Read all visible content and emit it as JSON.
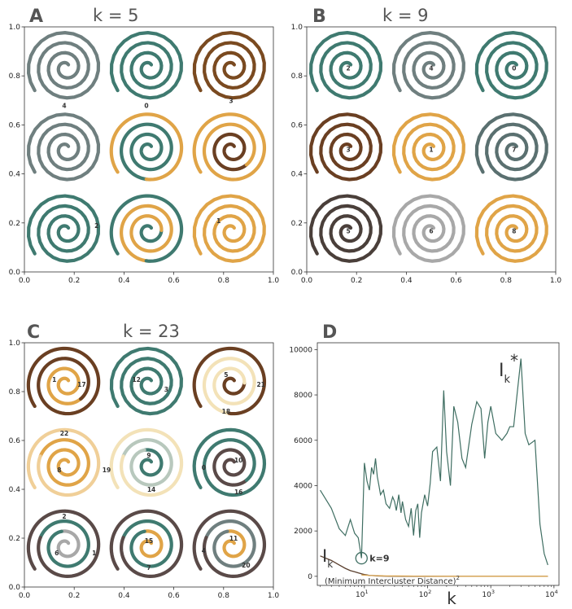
{
  "chart_data": [
    {
      "id": "A",
      "type": "scatter",
      "panel_letter": "A",
      "title": "k = 5",
      "xlim": [
        0.0,
        1.0
      ],
      "ylim": [
        0.0,
        1.0
      ],
      "x_ticks": [
        "0.0",
        "0.2",
        "0.4",
        "0.6",
        "0.8",
        "1.0"
      ],
      "y_ticks": [
        "0.0",
        "0.2",
        "0.4",
        "0.6",
        "0.8",
        "1.0"
      ],
      "spirals": [
        {
          "cx": 0.167,
          "cy": 0.833,
          "colors": [
            "#6f7f7f"
          ]
        },
        {
          "cx": 0.5,
          "cy": 0.833,
          "colors": [
            "#3f7a70"
          ]
        },
        {
          "cx": 0.833,
          "cy": 0.833,
          "colors": [
            "#7a4a20"
          ]
        },
        {
          "cx": 0.167,
          "cy": 0.5,
          "colors": [
            "#6f7f7f"
          ]
        },
        {
          "cx": 0.5,
          "cy": 0.5,
          "colors": [
            "#3f7a70",
            "#3f7a70",
            "#3f7a70",
            "#e0a447"
          ]
        },
        {
          "cx": 0.833,
          "cy": 0.5,
          "colors": [
            "#6a3f22",
            "#6a3f22",
            "#e0a447",
            "#e0a447"
          ]
        },
        {
          "cx": 0.167,
          "cy": 0.167,
          "colors": [
            "#3f7a70"
          ]
        },
        {
          "cx": 0.5,
          "cy": 0.167,
          "colors": [
            "#3f7a70",
            "#e0a447",
            "#e0a447",
            "#3f7a70"
          ]
        },
        {
          "cx": 0.833,
          "cy": 0.167,
          "colors": [
            "#e0a447"
          ]
        }
      ],
      "cluster_labels": [
        {
          "text": "4",
          "x": 0.16,
          "y": 0.68
        },
        {
          "text": "0",
          "x": 0.49,
          "y": 0.68
        },
        {
          "text": "3",
          "x": 0.83,
          "y": 0.7
        },
        {
          "text": "2",
          "x": 0.29,
          "y": 0.19
        },
        {
          "text": "1",
          "x": 0.78,
          "y": 0.21
        }
      ]
    },
    {
      "id": "B",
      "type": "scatter",
      "panel_letter": "B",
      "title": "k = 9",
      "xlim": [
        0.0,
        1.0
      ],
      "ylim": [
        0.0,
        1.0
      ],
      "x_ticks": [
        "0.0",
        "0.2",
        "0.4",
        "0.6",
        "0.8",
        "1.0"
      ],
      "y_ticks": [
        "0.0",
        "0.2",
        "0.4",
        "0.6",
        "0.8",
        "1.0"
      ],
      "spirals": [
        {
          "cx": 0.167,
          "cy": 0.833,
          "colors": [
            "#3f7a70"
          ]
        },
        {
          "cx": 0.5,
          "cy": 0.833,
          "colors": [
            "#6f7f7f"
          ]
        },
        {
          "cx": 0.833,
          "cy": 0.833,
          "colors": [
            "#3f7a70"
          ]
        },
        {
          "cx": 0.167,
          "cy": 0.5,
          "colors": [
            "#6a3f22"
          ]
        },
        {
          "cx": 0.5,
          "cy": 0.5,
          "colors": [
            "#e0a447"
          ]
        },
        {
          "cx": 0.833,
          "cy": 0.5,
          "colors": [
            "#5a7070"
          ]
        },
        {
          "cx": 0.167,
          "cy": 0.167,
          "colors": [
            "#4a3f3a"
          ]
        },
        {
          "cx": 0.5,
          "cy": 0.167,
          "colors": [
            "#a8a8a8"
          ]
        },
        {
          "cx": 0.833,
          "cy": 0.167,
          "colors": [
            "#e0a447"
          ]
        }
      ],
      "cluster_labels": [
        {
          "text": "2",
          "x": 0.167,
          "y": 0.833
        },
        {
          "text": "4",
          "x": 0.5,
          "y": 0.833
        },
        {
          "text": "0",
          "x": 0.833,
          "y": 0.833
        },
        {
          "text": "3",
          "x": 0.167,
          "y": 0.5
        },
        {
          "text": "1",
          "x": 0.5,
          "y": 0.5
        },
        {
          "text": "7",
          "x": 0.833,
          "y": 0.5
        },
        {
          "text": "5",
          "x": 0.167,
          "y": 0.167
        },
        {
          "text": "6",
          "x": 0.5,
          "y": 0.167
        },
        {
          "text": "8",
          "x": 0.833,
          "y": 0.167
        }
      ]
    },
    {
      "id": "C",
      "type": "scatter",
      "panel_letter": "C",
      "title": "k = 23",
      "xlim": [
        0.0,
        1.0
      ],
      "ylim": [
        0.0,
        1.0
      ],
      "x_ticks": [
        "0.0",
        "0.2",
        "0.4",
        "0.6",
        "0.8",
        "1.0"
      ],
      "y_ticks": [
        "0.0",
        "0.2",
        "0.4",
        "0.6",
        "0.8",
        "1.0"
      ],
      "spirals": [
        {
          "cx": 0.167,
          "cy": 0.833,
          "colors": [
            "#e0a447",
            "#e0a447",
            "#6a3f22",
            "#6a3f22"
          ]
        },
        {
          "cx": 0.5,
          "cy": 0.833,
          "colors": [
            "#3f7a70"
          ]
        },
        {
          "cx": 0.833,
          "cy": 0.833,
          "colors": [
            "#6a3f22",
            "#f3e2b8",
            "#f3e2b8",
            "#6a3f22"
          ]
        },
        {
          "cx": 0.167,
          "cy": 0.5,
          "colors": [
            "#e0a447",
            "#e0a447",
            "#f0cf98"
          ]
        },
        {
          "cx": 0.5,
          "cy": 0.5,
          "colors": [
            "#3f7a70",
            "#b8c8bd",
            "#f3e2b8"
          ]
        },
        {
          "cx": 0.833,
          "cy": 0.5,
          "colors": [
            "#5a4a48",
            "#3f7a70"
          ]
        },
        {
          "cx": 0.167,
          "cy": 0.167,
          "colors": [
            "#a8a8a8",
            "#3f7a70",
            "#5a4a48"
          ]
        },
        {
          "cx": 0.5,
          "cy": 0.167,
          "colors": [
            "#e0a447",
            "#3f7a70",
            "#5a4a48"
          ]
        },
        {
          "cx": 0.833,
          "cy": 0.167,
          "colors": [
            "#e0a447",
            "#6f7f7f",
            "#5a4a48"
          ]
        }
      ],
      "cluster_labels": [
        {
          "text": "1",
          "x": 0.12,
          "y": 0.85
        },
        {
          "text": "17",
          "x": 0.23,
          "y": 0.83
        },
        {
          "text": "12",
          "x": 0.45,
          "y": 0.85
        },
        {
          "text": "3",
          "x": 0.57,
          "y": 0.81
        },
        {
          "text": "5",
          "x": 0.81,
          "y": 0.87
        },
        {
          "text": "21",
          "x": 0.95,
          "y": 0.83
        },
        {
          "text": "18",
          "x": 0.81,
          "y": 0.72
        },
        {
          "text": "22",
          "x": 0.16,
          "y": 0.63
        },
        {
          "text": "8",
          "x": 0.14,
          "y": 0.48
        },
        {
          "text": "19",
          "x": 0.33,
          "y": 0.48
        },
        {
          "text": "9",
          "x": 0.5,
          "y": 0.54
        },
        {
          "text": "14",
          "x": 0.51,
          "y": 0.4
        },
        {
          "text": "0",
          "x": 0.72,
          "y": 0.49
        },
        {
          "text": "10",
          "x": 0.86,
          "y": 0.52
        },
        {
          "text": "16",
          "x": 0.86,
          "y": 0.39
        },
        {
          "text": "2",
          "x": 0.16,
          "y": 0.29
        },
        {
          "text": "6",
          "x": 0.13,
          "y": 0.14
        },
        {
          "text": "1",
          "x": 0.28,
          "y": 0.14
        },
        {
          "text": "15",
          "x": 0.5,
          "y": 0.19
        },
        {
          "text": "7",
          "x": 0.5,
          "y": 0.08
        },
        {
          "text": "4",
          "x": 0.72,
          "y": 0.15
        },
        {
          "text": "11",
          "x": 0.84,
          "y": 0.2
        },
        {
          "text": "20",
          "x": 0.89,
          "y": 0.09
        }
      ]
    },
    {
      "id": "D",
      "type": "line",
      "panel_letter": "D",
      "xscale": "log",
      "xlim": [
        1.8,
        12000
      ],
      "ylim": [
        -400,
        10300
      ],
      "x_ticks": [
        {
          "value": 10,
          "base": "10",
          "exp": "1"
        },
        {
          "value": 100,
          "base": "10",
          "exp": "2"
        },
        {
          "value": 1000,
          "base": "10",
          "exp": "3"
        },
        {
          "value": 10000,
          "base": "10",
          "exp": "4"
        }
      ],
      "y_ticks": [
        {
          "value": 0,
          "label": "0"
        },
        {
          "value": 2000,
          "label": "2000"
        },
        {
          "value": 4000,
          "label": "4000"
        },
        {
          "value": 6000,
          "label": "6000"
        },
        {
          "value": 8000,
          "label": "8000"
        },
        {
          "value": 10000,
          "label": "10000"
        }
      ],
      "xlabel": "k",
      "series": [
        {
          "name": "I_k*",
          "color": "#3f6e62",
          "x": [
            2,
            3,
            4,
            5,
            6,
            7,
            8,
            9,
            10,
            11,
            12,
            13,
            14,
            15,
            16,
            17,
            18,
            20,
            22,
            25,
            28,
            30,
            32,
            35,
            38,
            40,
            45,
            50,
            55,
            60,
            65,
            70,
            75,
            80,
            90,
            100,
            110,
            120,
            140,
            160,
            180,
            200,
            230,
            260,
            300,
            350,
            400,
            500,
            600,
            700,
            800,
            900,
            1000,
            1200,
            1500,
            1800,
            2000,
            2300,
            2600,
            3000,
            3500,
            4000,
            5000,
            6000,
            7000,
            8000
          ],
          "y": [
            3800,
            3000,
            2100,
            1800,
            2500,
            1900,
            1700,
            800,
            5000,
            4200,
            3800,
            4800,
            4500,
            5200,
            4400,
            4000,
            3600,
            3800,
            3200,
            3000,
            3500,
            3300,
            2900,
            3600,
            2800,
            3300,
            2500,
            2200,
            3000,
            1800,
            2900,
            3200,
            1700,
            2800,
            3600,
            3100,
            4100,
            5500,
            5700,
            4200,
            8200,
            5500,
            4000,
            7500,
            6800,
            5200,
            4800,
            6700,
            7700,
            7400,
            5200,
            6800,
            7500,
            6300,
            6000,
            6300,
            6600,
            6600,
            8000,
            9600,
            6300,
            5800,
            6000,
            2300,
            1000,
            500
          ]
        },
        {
          "name": "I_k",
          "color": "#5a3f2e",
          "x": [
            2,
            3,
            4,
            5,
            6,
            7,
            8,
            9,
            10,
            11,
            12,
            14,
            16,
            20,
            25,
            30,
            40,
            60,
            100,
            200,
            500,
            1000,
            3000,
            8000
          ],
          "y": [
            900,
            700,
            500,
            350,
            250,
            200,
            150,
            110,
            80,
            60,
            40,
            30,
            20,
            10,
            5,
            3,
            2,
            1,
            1,
            0,
            0,
            0,
            0,
            0
          ]
        },
        {
          "name": "(Minimum Intercluster Distance)",
          "color": "#d9a451",
          "x": [
            9,
            12,
            20,
            50,
            100,
            300,
            1000,
            3000,
            8000
          ],
          "y": [
            60,
            40,
            20,
            10,
            5,
            2,
            1,
            1,
            1
          ]
        }
      ],
      "annotations": {
        "peak_label": "I",
        "peak_sub": "k",
        "peak_sup": "*",
        "low_label": "I",
        "low_sub": "k",
        "min_dist_label": "(Minimum Intercluster Distance)",
        "min_dist_sup": "2",
        "elbow_label": "k=9",
        "elbow_point": {
          "x": 9,
          "y": 800
        }
      }
    }
  ]
}
